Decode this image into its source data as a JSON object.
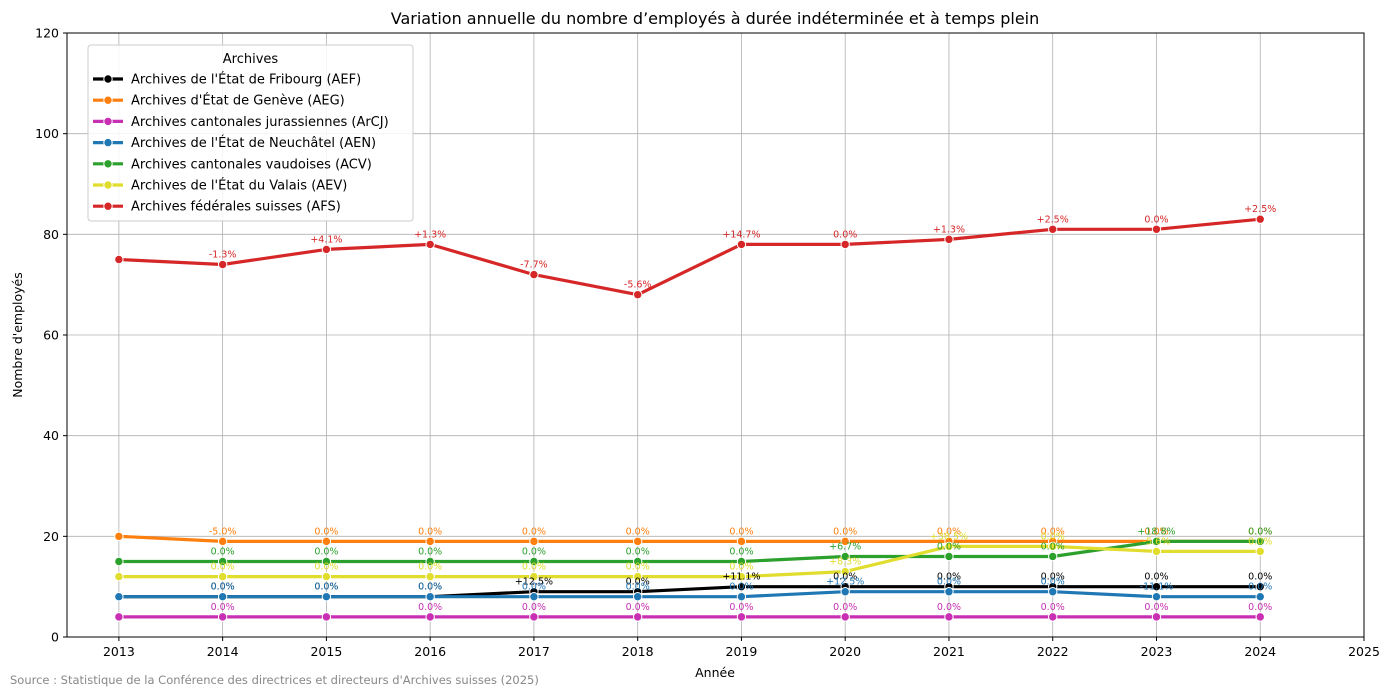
{
  "chart_data": {
    "type": "line",
    "title": "Variation annuelle du nombre d’employés à durée indéterminée et à temps plein",
    "xlabel": "Année",
    "ylabel": "Nombre d'employés",
    "xlim": [
      2012.5,
      2025
    ],
    "ylim": [
      0,
      120
    ],
    "x_ticks": [
      2013,
      2014,
      2015,
      2016,
      2017,
      2018,
      2019,
      2020,
      2021,
      2022,
      2023,
      2024,
      2025
    ],
    "y_ticks": [
      0,
      20,
      40,
      60,
      80,
      100,
      120
    ],
    "grid": true,
    "legend_title": "Archives",
    "legend_position": "top-left",
    "source": "Source : Statistique de la Conférence des directrices et directeurs d'Archives suisses (2025)",
    "x": [
      2013,
      2014,
      2015,
      2016,
      2017,
      2018,
      2019,
      2020,
      2021,
      2022,
      2023,
      2024
    ],
    "series": [
      {
        "name": "Archives de l'État de Fribourg (AEF)",
        "color": "#000000",
        "values": [
          8,
          8,
          8,
          8,
          9,
          9,
          10,
          10,
          10,
          10,
          10,
          10
        ],
        "labels": [
          "",
          "0.0%",
          "0.0%",
          "0.0%",
          "+12.5%",
          "0.0%",
          "+11.1%",
          "0.0%",
          "0.0%",
          "0.0%",
          "0.0%",
          "0.0%"
        ]
      },
      {
        "name": "Archives d'État de Genève (AEG)",
        "color": "#ff7f0e",
        "values": [
          20,
          19,
          19,
          19,
          19,
          19,
          19,
          19,
          19,
          19,
          19,
          19
        ],
        "labels": [
          "",
          "-5.0%",
          "0.0%",
          "0.0%",
          "0.0%",
          "0.0%",
          "0.0%",
          "0.0%",
          "0.0%",
          "0.0%",
          "0.0%",
          "0.0%"
        ]
      },
      {
        "name": "Archives cantonales jurassiennes (ArCJ)",
        "color": "#c82fb3",
        "values": [
          4,
          4,
          4,
          4,
          4,
          4,
          4,
          4,
          4,
          4,
          4,
          4
        ],
        "labels": [
          "",
          "0.0%",
          "",
          "0.0%",
          "0.0%",
          "0.0%",
          "0.0%",
          "0.0%",
          "0.0%",
          "0.0%",
          "0.0%",
          "0.0%"
        ]
      },
      {
        "name": "Archives de l'État de Neuchâtel (AEN)",
        "color": "#1f77b4",
        "values": [
          8,
          8,
          8,
          8,
          8,
          8,
          8,
          9,
          9,
          9,
          8,
          8
        ],
        "labels": [
          "",
          "0.0%",
          "0.0%",
          "0.0%",
          "0.0%",
          "0.0%",
          "0.0%",
          "+12.5%",
          "0.0%",
          "0.0%",
          "-11.1%",
          "0.0%"
        ]
      },
      {
        "name": "Archives cantonales vaudoises (ACV)",
        "color": "#2ca02c",
        "values": [
          15,
          15,
          15,
          15,
          15,
          15,
          15,
          16,
          16,
          16,
          19,
          19
        ],
        "labels": [
          "",
          "0.0%",
          "0.0%",
          "0.0%",
          "0.0%",
          "0.0%",
          "0.0%",
          "+6.7%",
          "0.0%",
          "0.0%",
          "+18.8%",
          "0.0%"
        ]
      },
      {
        "name": "Archives de l'État du Valais (AEV)",
        "color": "#e1dd2f",
        "values": [
          12,
          12,
          12,
          12,
          12,
          12,
          12,
          13,
          18,
          18,
          17,
          17
        ],
        "labels": [
          "",
          "0.0%",
          "0.0%",
          "0.0%",
          "0.0%",
          "0.0%",
          "0.0%",
          "+8.3%",
          "+38.5%",
          "0.0%",
          "-5.6%",
          "0.0%"
        ]
      },
      {
        "name": "Archives fédérales suisses (AFS)",
        "color": "#d62728",
        "values": [
          75,
          74,
          77,
          78,
          72,
          68,
          78,
          78,
          79,
          81,
          81,
          83
        ],
        "labels": [
          "",
          "-1.3%",
          "+4.1%",
          "+1.3%",
          "-7.7%",
          "-5.6%",
          "+14.7%",
          "0.0%",
          "+1.3%",
          "+2.5%",
          "0.0%",
          "+2.5%"
        ]
      }
    ]
  }
}
